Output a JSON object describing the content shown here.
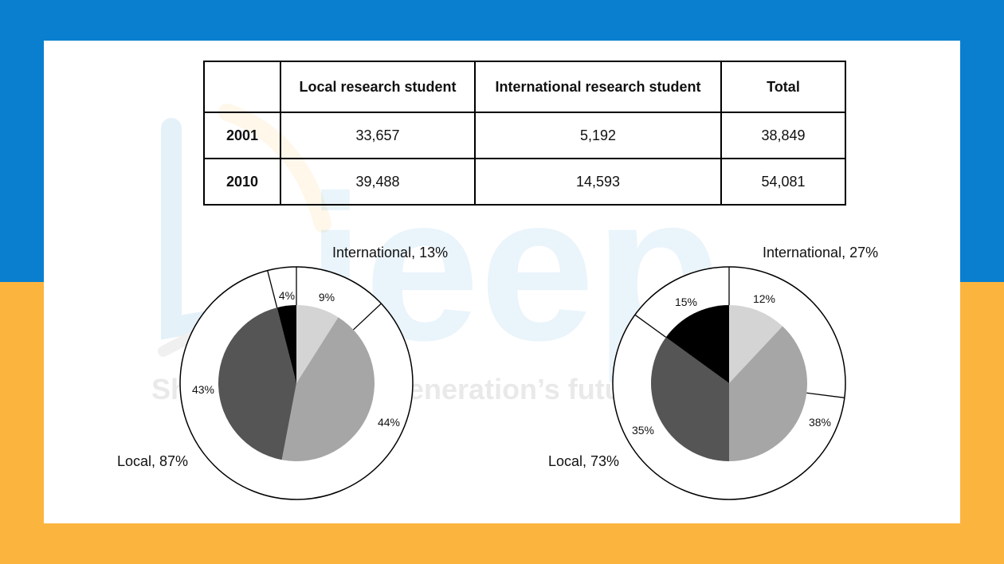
{
  "watermark": {
    "brand": "ieep",
    "tagline": "Shaping the next generation’s future"
  },
  "table": {
    "headers": [
      "",
      "Local research student",
      "International research student",
      "Total"
    ],
    "rows": [
      {
        "year": "2001",
        "local": "33,657",
        "international": "5,192",
        "total": "38,849"
      },
      {
        "year": "2010",
        "local": "39,488",
        "international": "14,593",
        "total": "54,081"
      }
    ]
  },
  "colors": {
    "black": "#000000",
    "dark_gray": "#555555",
    "mid_gray": "#a6a6a6",
    "light_gray": "#d4d4d4",
    "blue": "#0a7fcf",
    "yellow": "#fbb53f"
  },
  "chart_data": [
    {
      "type": "pie",
      "outer": [
        {
          "label": "International, 13%",
          "value": 13
        },
        {
          "label": "Local, 87%",
          "value": 87
        }
      ],
      "inner": [
        {
          "label": "9%",
          "value": 9,
          "color": "#d4d4d4"
        },
        {
          "label": "44%",
          "value": 44,
          "color": "#a6a6a6"
        },
        {
          "label": "43%",
          "value": 43,
          "color": "#555555"
        },
        {
          "label": "4%",
          "value": 4,
          "color": "#000000"
        }
      ]
    },
    {
      "type": "pie",
      "outer": [
        {
          "label": "International, 27%",
          "value": 27
        },
        {
          "label": "Local, 73%",
          "value": 73
        }
      ],
      "inner": [
        {
          "label": "12%",
          "value": 12,
          "color": "#d4d4d4"
        },
        {
          "label": "38%",
          "value": 38,
          "color": "#a6a6a6"
        },
        {
          "label": "35%",
          "value": 35,
          "color": "#555555"
        },
        {
          "label": "15%",
          "value": 15,
          "color": "#000000"
        }
      ]
    }
  ]
}
